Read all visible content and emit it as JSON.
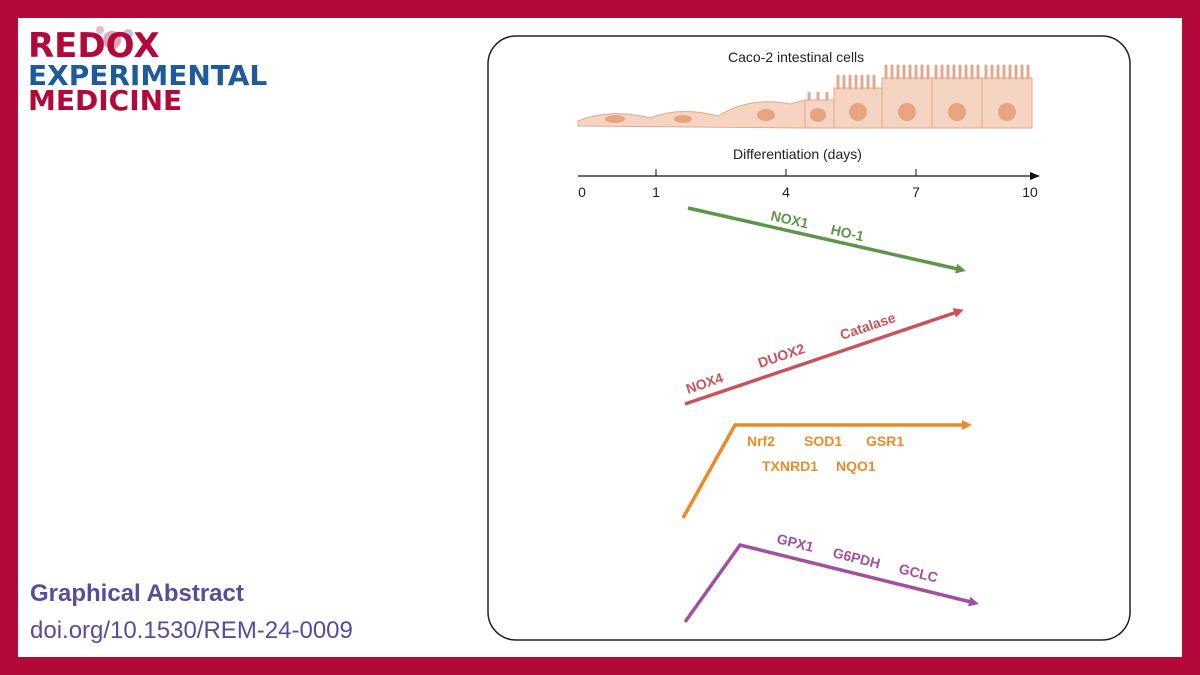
{
  "logo": {
    "lines": [
      "REDOX",
      "EXPERIMENTAL",
      "MEDICINE"
    ]
  },
  "footer": {
    "title": "Graphical Abstract",
    "doi": "doi.org/10.1530/REM-24-0009"
  },
  "figure": {
    "cells_label": "Caco-2 intestinal cells",
    "axis_label": "Differentiation (days)",
    "axis_ticks": [
      "0",
      "1",
      "4",
      "7",
      "10"
    ],
    "groups": [
      {
        "labels": [
          "NOX1",
          "HO-1"
        ]
      },
      {
        "labels": [
          "NOX4",
          "DUOX2",
          "Catalase"
        ]
      },
      {
        "labels": [
          "Nrf2",
          "SOD1",
          "GSR1",
          "TXNRD1",
          "NQO1"
        ]
      },
      {
        "labels": [
          "GPX1",
          "G6PDH",
          "GCLC"
        ]
      }
    ]
  }
}
